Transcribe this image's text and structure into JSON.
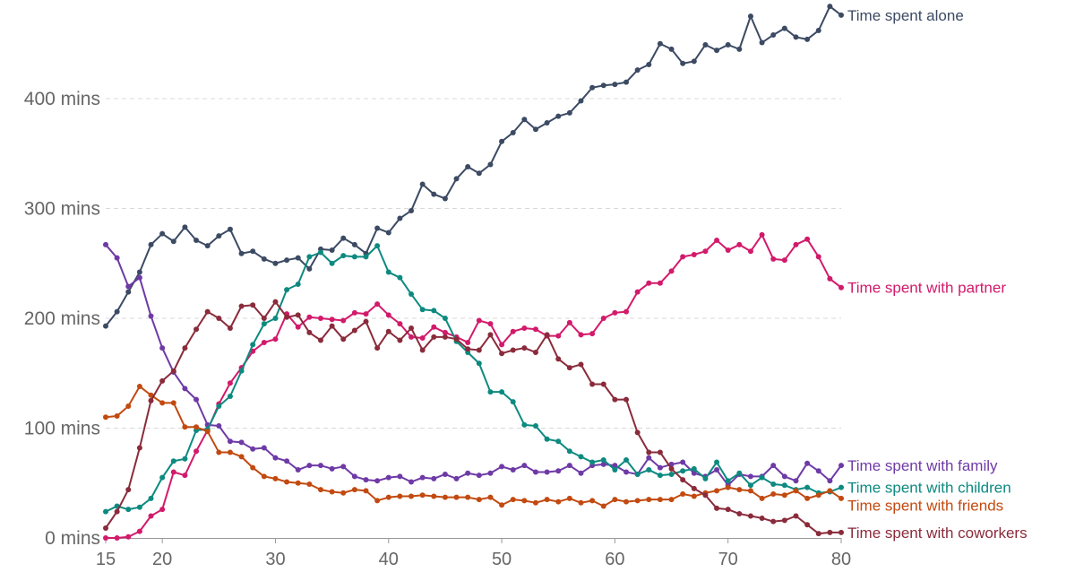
{
  "chart_data": {
    "type": "line",
    "title": "",
    "xlabel": "",
    "ylabel": "",
    "xlim": [
      15,
      80
    ],
    "ylim": [
      0,
      490
    ],
    "grid": true,
    "legend": "inline-right",
    "x_ticks": [
      {
        "value": 15,
        "label": "15"
      },
      {
        "value": 20,
        "label": "20"
      },
      {
        "value": 30,
        "label": "30"
      },
      {
        "value": 40,
        "label": "40"
      },
      {
        "value": 50,
        "label": "50"
      },
      {
        "value": 60,
        "label": "60"
      },
      {
        "value": 70,
        "label": "70"
      },
      {
        "value": 80,
        "label": "80"
      }
    ],
    "y_ticks": [
      {
        "value": 0,
        "label": "0 mins"
      },
      {
        "value": 100,
        "label": "100 mins"
      },
      {
        "value": 200,
        "label": "200 mins"
      },
      {
        "value": 300,
        "label": "300 mins"
      },
      {
        "value": 400,
        "label": "400 mins"
      }
    ],
    "x": [
      15,
      16,
      17,
      18,
      19,
      20,
      21,
      22,
      23,
      24,
      25,
      26,
      27,
      28,
      29,
      30,
      31,
      32,
      33,
      34,
      35,
      36,
      37,
      38,
      39,
      40,
      41,
      42,
      43,
      44,
      45,
      46,
      47,
      48,
      49,
      50,
      51,
      52,
      53,
      54,
      55,
      56,
      57,
      58,
      59,
      60,
      61,
      62,
      63,
      64,
      65,
      66,
      67,
      68,
      69,
      70,
      71,
      72,
      73,
      74,
      75,
      76,
      77,
      78,
      79,
      80
    ],
    "series": [
      {
        "name": "Time spent alone",
        "color": "#3c4a63",
        "values": [
          193,
          206,
          224,
          242,
          267,
          277,
          270,
          283,
          271,
          266,
          275,
          281,
          259,
          261,
          254,
          250,
          253,
          255,
          245,
          263,
          262,
          273,
          267,
          259,
          282,
          278,
          291,
          298,
          322,
          313,
          309,
          327,
          338,
          332,
          340,
          361,
          369,
          381,
          372,
          378,
          384,
          387,
          398,
          410,
          412,
          413,
          415,
          426,
          431,
          450,
          445,
          432,
          434,
          449,
          444,
          449,
          445,
          475,
          451,
          458,
          464,
          456,
          454,
          462,
          484,
          476
        ],
        "label_value": 476
      },
      {
        "name": "Time spent with partner",
        "color": "#d21a6b",
        "values": [
          0,
          0,
          1,
          6,
          20,
          26,
          60,
          57,
          79,
          98,
          122,
          141,
          155,
          170,
          178,
          181,
          204,
          192,
          201,
          200,
          199,
          198,
          205,
          204,
          213,
          203,
          195,
          183,
          182,
          192,
          187,
          183,
          178,
          198,
          195,
          176,
          188,
          191,
          190,
          184,
          184,
          196,
          185,
          186,
          200,
          205,
          206,
          224,
          232,
          232,
          243,
          256,
          258,
          261,
          271,
          262,
          267,
          261,
          276,
          254,
          253,
          267,
          272,
          256,
          236,
          228
        ],
        "label_value": 228
      },
      {
        "name": "Time spent with family",
        "color": "#6e3aa6",
        "values": [
          267,
          255,
          229,
          237,
          202,
          173,
          151,
          136,
          126,
          103,
          102,
          88,
          87,
          81,
          82,
          73,
          70,
          62,
          66,
          66,
          63,
          65,
          56,
          53,
          52,
          55,
          56,
          51,
          55,
          54,
          58,
          54,
          59,
          57,
          59,
          65,
          62,
          66,
          60,
          60,
          61,
          66,
          59,
          66,
          67,
          66,
          60,
          58,
          73,
          64,
          67,
          69,
          59,
          56,
          62,
          48,
          58,
          56,
          56,
          66,
          56,
          52,
          68,
          61,
          52,
          66
        ],
        "label_value": 66
      },
      {
        "name": "Time spent with children",
        "color": "#0d8a80",
        "values": [
          24,
          29,
          26,
          28,
          36,
          55,
          70,
          72,
          98,
          99,
          120,
          129,
          152,
          176,
          195,
          200,
          226,
          231,
          256,
          260,
          250,
          257,
          256,
          256,
          266,
          242,
          237,
          222,
          208,
          207,
          200,
          179,
          169,
          159,
          133,
          133,
          124,
          103,
          102,
          90,
          88,
          79,
          74,
          69,
          71,
          62,
          71,
          58,
          62,
          57,
          58,
          61,
          63,
          54,
          69,
          52,
          59,
          48,
          55,
          49,
          48,
          44,
          46,
          41,
          42,
          46
        ],
        "label_value": 46
      },
      {
        "name": "Time spent with friends",
        "color": "#c24a10",
        "values": [
          110,
          111,
          120,
          138,
          130,
          123,
          123,
          101,
          101,
          97,
          78,
          78,
          74,
          64,
          56,
          54,
          51,
          50,
          49,
          44,
          42,
          41,
          44,
          43,
          34,
          37,
          38,
          38,
          39,
          38,
          37,
          37,
          37,
          35,
          37,
          30,
          35,
          34,
          32,
          35,
          33,
          36,
          32,
          34,
          29,
          35,
          33,
          34,
          35,
          35,
          35,
          40,
          38,
          41,
          43,
          46,
          44,
          43,
          36,
          40,
          39,
          43,
          36,
          39,
          43,
          36
        ],
        "label_value": 36
      },
      {
        "name": "Time spent with coworkers",
        "color": "#8a2b3b",
        "values": [
          9,
          24,
          44,
          82,
          125,
          143,
          152,
          173,
          190,
          206,
          200,
          191,
          211,
          212,
          200,
          215,
          201,
          203,
          187,
          180,
          193,
          181,
          189,
          197,
          173,
          188,
          180,
          191,
          171,
          183,
          183,
          181,
          172,
          171,
          185,
          168,
          171,
          173,
          169,
          185,
          163,
          155,
          158,
          140,
          140,
          126,
          126,
          96,
          78,
          78,
          63,
          53,
          45,
          39,
          27,
          26,
          22,
          20,
          18,
          15,
          16,
          20,
          12,
          4,
          5,
          5
        ],
        "label_value": 5
      }
    ]
  }
}
